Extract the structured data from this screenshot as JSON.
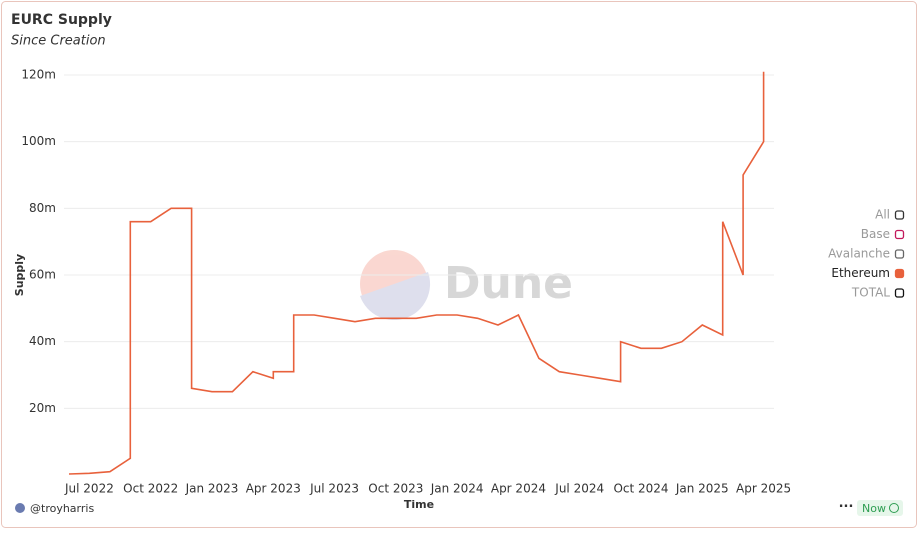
{
  "chart_data": {
    "type": "line",
    "title": "EURC Supply",
    "subtitle": "Since Creation",
    "x_label": "Time",
    "y_label": "Supply",
    "watermark": "Dune",
    "author": "@troyharris",
    "status": "Now",
    "x": [
      "2022-06",
      "2022-07",
      "2022-08",
      "2022-09",
      "2022-09",
      "2022-10",
      "2022-11",
      "2022-12",
      "2022-12",
      "2023-01",
      "2023-02",
      "2023-03",
      "2023-04",
      "2023-04",
      "2023-05",
      "2023-05",
      "2023-06",
      "2023-07",
      "2023-08",
      "2023-09",
      "2023-10",
      "2023-11",
      "2023-12",
      "2024-01",
      "2024-02",
      "2024-03",
      "2024-04",
      "2024-05",
      "2024-06",
      "2024-07",
      "2024-08",
      "2024-09",
      "2024-09",
      "2024-10",
      "2024-11",
      "2024-12",
      "2025-01",
      "2025-02",
      "2025-02",
      "2025-03",
      "2025-03",
      "2025-04",
      "2025-04"
    ],
    "series": [
      {
        "name": "Ethereum",
        "color": "#e8613c",
        "values": [
          300000,
          500000,
          1000000,
          5000000,
          76000000,
          76000000,
          80000000,
          80000000,
          26000000,
          25000000,
          25000000,
          31000000,
          29000000,
          31000000,
          31000000,
          48000000,
          48000000,
          47000000,
          46000000,
          47000000,
          47000000,
          47000000,
          48000000,
          48000000,
          47000000,
          45000000,
          48000000,
          35000000,
          31000000,
          30000000,
          29000000,
          28000000,
          40000000,
          38000000,
          38000000,
          40000000,
          45000000,
          42000000,
          76000000,
          60000000,
          90000000,
          100000000,
          121000000
        ]
      }
    ],
    "legend_items": [
      {
        "name": "All",
        "color": "#333333",
        "active": false
      },
      {
        "name": "Base",
        "color": "#c2185b",
        "active": false
      },
      {
        "name": "Avalanche",
        "color": "#666666",
        "active": false
      },
      {
        "name": "Ethereum",
        "color": "#e8613c",
        "active": true
      },
      {
        "name": "TOTAL",
        "color": "#111111",
        "active": false
      }
    ],
    "xlim": [
      "2022-06",
      "2025-05"
    ],
    "xticks": [
      {
        "value": "2022-07",
        "label": "Jul 2022"
      },
      {
        "value": "2022-10",
        "label": "Oct 2022"
      },
      {
        "value": "2023-01",
        "label": "Jan 2023"
      },
      {
        "value": "2023-04",
        "label": "Apr 2023"
      },
      {
        "value": "2023-07",
        "label": "Jul 2023"
      },
      {
        "value": "2023-10",
        "label": "Oct 2023"
      },
      {
        "value": "2024-01",
        "label": "Jan 2024"
      },
      {
        "value": "2024-04",
        "label": "Apr 2024"
      },
      {
        "value": "2024-07",
        "label": "Jul 2024"
      },
      {
        "value": "2024-10",
        "label": "Oct 2024"
      },
      {
        "value": "2025-01",
        "label": "Jan 2025"
      },
      {
        "value": "2025-04",
        "label": "Apr 2025"
      }
    ],
    "ylim": [
      0,
      120000000
    ],
    "yticks": [
      {
        "value": 20000000,
        "label": "20m"
      },
      {
        "value": 40000000,
        "label": "40m"
      },
      {
        "value": 60000000,
        "label": "60m"
      },
      {
        "value": 80000000,
        "label": "80m"
      },
      {
        "value": 100000000,
        "label": "100m"
      },
      {
        "value": 120000000,
        "label": "120m"
      }
    ],
    "grid": true
  }
}
